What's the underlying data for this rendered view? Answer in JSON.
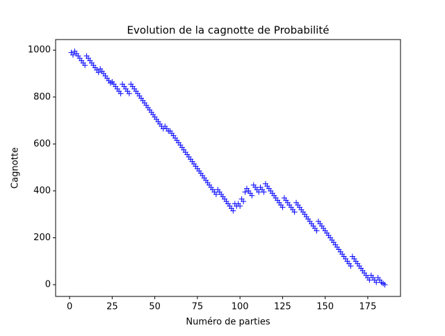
{
  "chart_data": {
    "type": "scatter",
    "title": "Evolution de la cagnotte de Probabilité",
    "xlabel": "Numéro de parties",
    "ylabel": "Cagnotte",
    "marker": "+",
    "color": "#0000ff",
    "x": [
      1,
      2,
      3,
      4,
      5,
      6,
      7,
      8,
      9,
      10,
      11,
      12,
      13,
      14,
      15,
      16,
      17,
      18,
      19,
      20,
      21,
      22,
      23,
      24,
      25,
      26,
      27,
      28,
      29,
      30,
      31,
      32,
      33,
      34,
      35,
      36,
      37,
      38,
      39,
      40,
      41,
      42,
      43,
      44,
      45,
      46,
      47,
      48,
      49,
      50,
      51,
      52,
      53,
      54,
      55,
      56,
      57,
      58,
      59,
      60,
      61,
      62,
      63,
      64,
      65,
      66,
      67,
      68,
      69,
      70,
      71,
      72,
      73,
      74,
      75,
      76,
      77,
      78,
      79,
      80,
      81,
      82,
      83,
      84,
      85,
      86,
      87,
      88,
      89,
      90,
      91,
      92,
      93,
      94,
      95,
      96,
      97,
      98,
      99,
      100,
      101,
      102,
      103,
      104,
      105,
      106,
      107,
      108,
      109,
      110,
      111,
      112,
      113,
      114,
      115,
      116,
      117,
      118,
      119,
      120,
      121,
      122,
      123,
      124,
      125,
      126,
      127,
      128,
      129,
      130,
      131,
      132,
      133,
      134,
      135,
      136,
      137,
      138,
      139,
      140,
      141,
      142,
      143,
      144,
      145,
      146,
      147,
      148,
      149,
      150,
      151,
      152,
      153,
      154,
      155,
      156,
      157,
      158,
      159,
      160,
      161,
      162,
      163,
      164,
      165,
      166,
      167,
      168,
      169,
      170,
      171,
      172,
      173,
      174,
      175,
      176,
      177,
      178,
      179,
      180,
      181,
      182,
      183,
      184,
      185
    ],
    "values": [
      990,
      980,
      995,
      985,
      975,
      965,
      955,
      945,
      935,
      975,
      965,
      955,
      945,
      935,
      925,
      915,
      905,
      920,
      910,
      900,
      890,
      880,
      870,
      860,
      865,
      855,
      845,
      835,
      825,
      815,
      855,
      845,
      835,
      825,
      815,
      855,
      845,
      835,
      825,
      815,
      805,
      795,
      785,
      775,
      765,
      755,
      745,
      735,
      725,
      715,
      705,
      695,
      685,
      675,
      665,
      675,
      665,
      655,
      655,
      645,
      635,
      625,
      615,
      605,
      595,
      585,
      575,
      565,
      555,
      545,
      535,
      525,
      515,
      505,
      495,
      485,
      475,
      465,
      455,
      445,
      435,
      425,
      415,
      405,
      395,
      385,
      405,
      395,
      385,
      375,
      365,
      355,
      345,
      335,
      325,
      315,
      345,
      335,
      345,
      335,
      365,
      355,
      395,
      410,
      400,
      390,
      380,
      425,
      415,
      405,
      395,
      415,
      405,
      395,
      430,
      420,
      410,
      400,
      390,
      380,
      370,
      360,
      350,
      340,
      330,
      370,
      360,
      350,
      340,
      330,
      320,
      310,
      350,
      340,
      330,
      320,
      310,
      300,
      290,
      280,
      270,
      260,
      250,
      240,
      230,
      270,
      260,
      250,
      240,
      230,
      220,
      210,
      200,
      190,
      180,
      170,
      160,
      150,
      140,
      130,
      120,
      110,
      100,
      90,
      80,
      120,
      110,
      100,
      90,
      80,
      70,
      60,
      50,
      40,
      30,
      20,
      40,
      30,
      20,
      10,
      30,
      20,
      10,
      5,
      0
    ],
    "xlim": [
      -8.2,
      194.2
    ],
    "xticks": [
      0,
      25,
      50,
      75,
      100,
      125,
      150,
      175
    ],
    "ylim": [
      -50,
      1045
    ],
    "yticks": [
      0,
      200,
      400,
      600,
      800,
      1000
    ]
  }
}
